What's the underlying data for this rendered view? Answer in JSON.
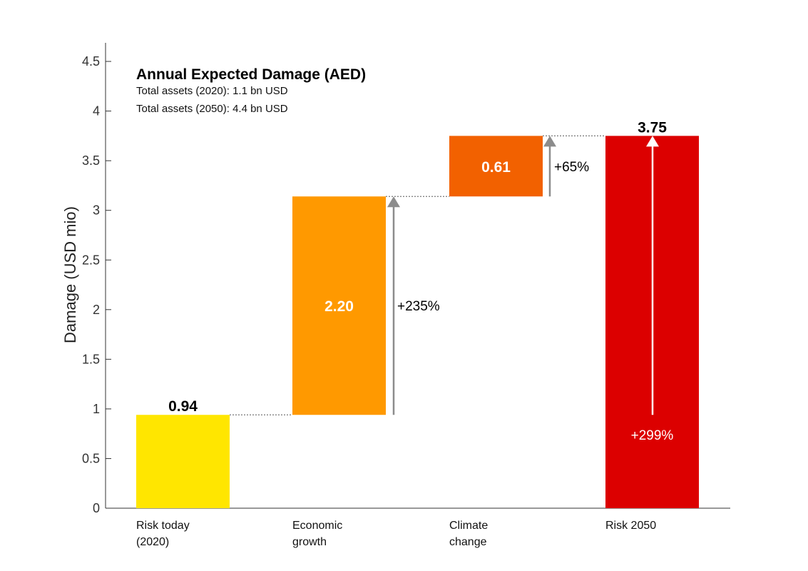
{
  "chart_data": {
    "type": "bar",
    "subtype": "waterfall",
    "title": "Annual Expected Damage (AED)",
    "subtitle_lines": [
      "Total assets (2020): 1.1 bn USD",
      "Total assets (2050): 4.4 bn USD"
    ],
    "ylabel": "Damage (USD mio)",
    "xlabel": "",
    "ylim": [
      0,
      4.7
    ],
    "yticks": [
      "0",
      "0.5",
      "1",
      "1.5",
      "2",
      "2.5",
      "3",
      "3.5",
      "4",
      "4.5"
    ],
    "grid": false,
    "bars": [
      {
        "category": [
          "Risk today",
          "(2020)"
        ],
        "base": 0,
        "value": 0.94,
        "label": "0.94",
        "color": "#FFE600",
        "label_position": "above"
      },
      {
        "category": [
          "Economic",
          "growth"
        ],
        "base": 0.94,
        "value": 2.2,
        "label": "2.20",
        "color": "#FF9900",
        "label_position": "inside",
        "change_label": "+235%"
      },
      {
        "category": [
          "Climate",
          "change"
        ],
        "base": 3.14,
        "value": 0.61,
        "label": "0.61",
        "color": "#F26100",
        "label_position": "inside",
        "change_label": "+65%"
      },
      {
        "category": [
          "Risk 2050"
        ],
        "base": 0,
        "value": 3.75,
        "label": "3.75",
        "color": "#DC0000",
        "label_position": "above",
        "change_label": "+299%"
      }
    ],
    "colors": {
      "arrow": "#8C8C8C",
      "connector": "#777777"
    }
  }
}
